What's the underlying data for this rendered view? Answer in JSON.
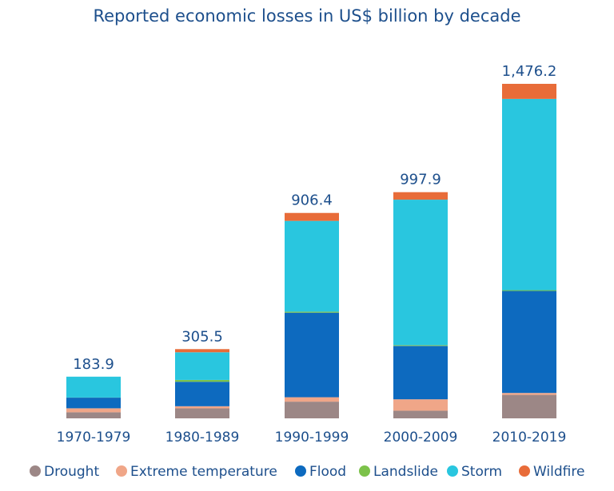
{
  "chart_data": {
    "type": "bar",
    "stacked": true,
    "title": "Reported economic losses in US$ billion by decade",
    "xlabel": "",
    "ylabel": "",
    "ylim": [
      0,
      1476.2
    ],
    "grid": false,
    "legend_position": "bottom",
    "categories": [
      "1970-1979",
      "1980-1989",
      "1990-1999",
      "2000-2009",
      "2010-2019"
    ],
    "totals": [
      "183.9",
      "305.5",
      "906.4",
      "997.9",
      "1,476.2"
    ],
    "total_values": [
      183.9,
      305.5,
      906.4,
      997.9,
      1476.2
    ],
    "series": [
      {
        "name": "Drought",
        "color": "#9c8786",
        "values": [
          26.8,
          44.0,
          73.6,
          33.6,
          103.6
        ]
      },
      {
        "name": "Extreme temperature",
        "color": "#f0a688",
        "values": [
          17.6,
          9.4,
          19.6,
          50.4,
          8.4
        ]
      },
      {
        "name": "Flood",
        "color": "#0d6abf",
        "values": [
          47.0,
          108.0,
          373.0,
          235.6,
          450.0
        ]
      },
      {
        "name": "Landslide",
        "color": "#7cc24a",
        "values": [
          0.5,
          8.0,
          4.5,
          3.5,
          3.5
        ]
      },
      {
        "name": "Storm",
        "color": "#29c6df",
        "values": [
          92.0,
          122.1,
          400.7,
          642.0,
          844.2
        ]
      },
      {
        "name": "Wildfire",
        "color": "#e86c39",
        "values": [
          0.0,
          14.0,
          35.0,
          33.0,
          66.5
        ]
      }
    ]
  }
}
